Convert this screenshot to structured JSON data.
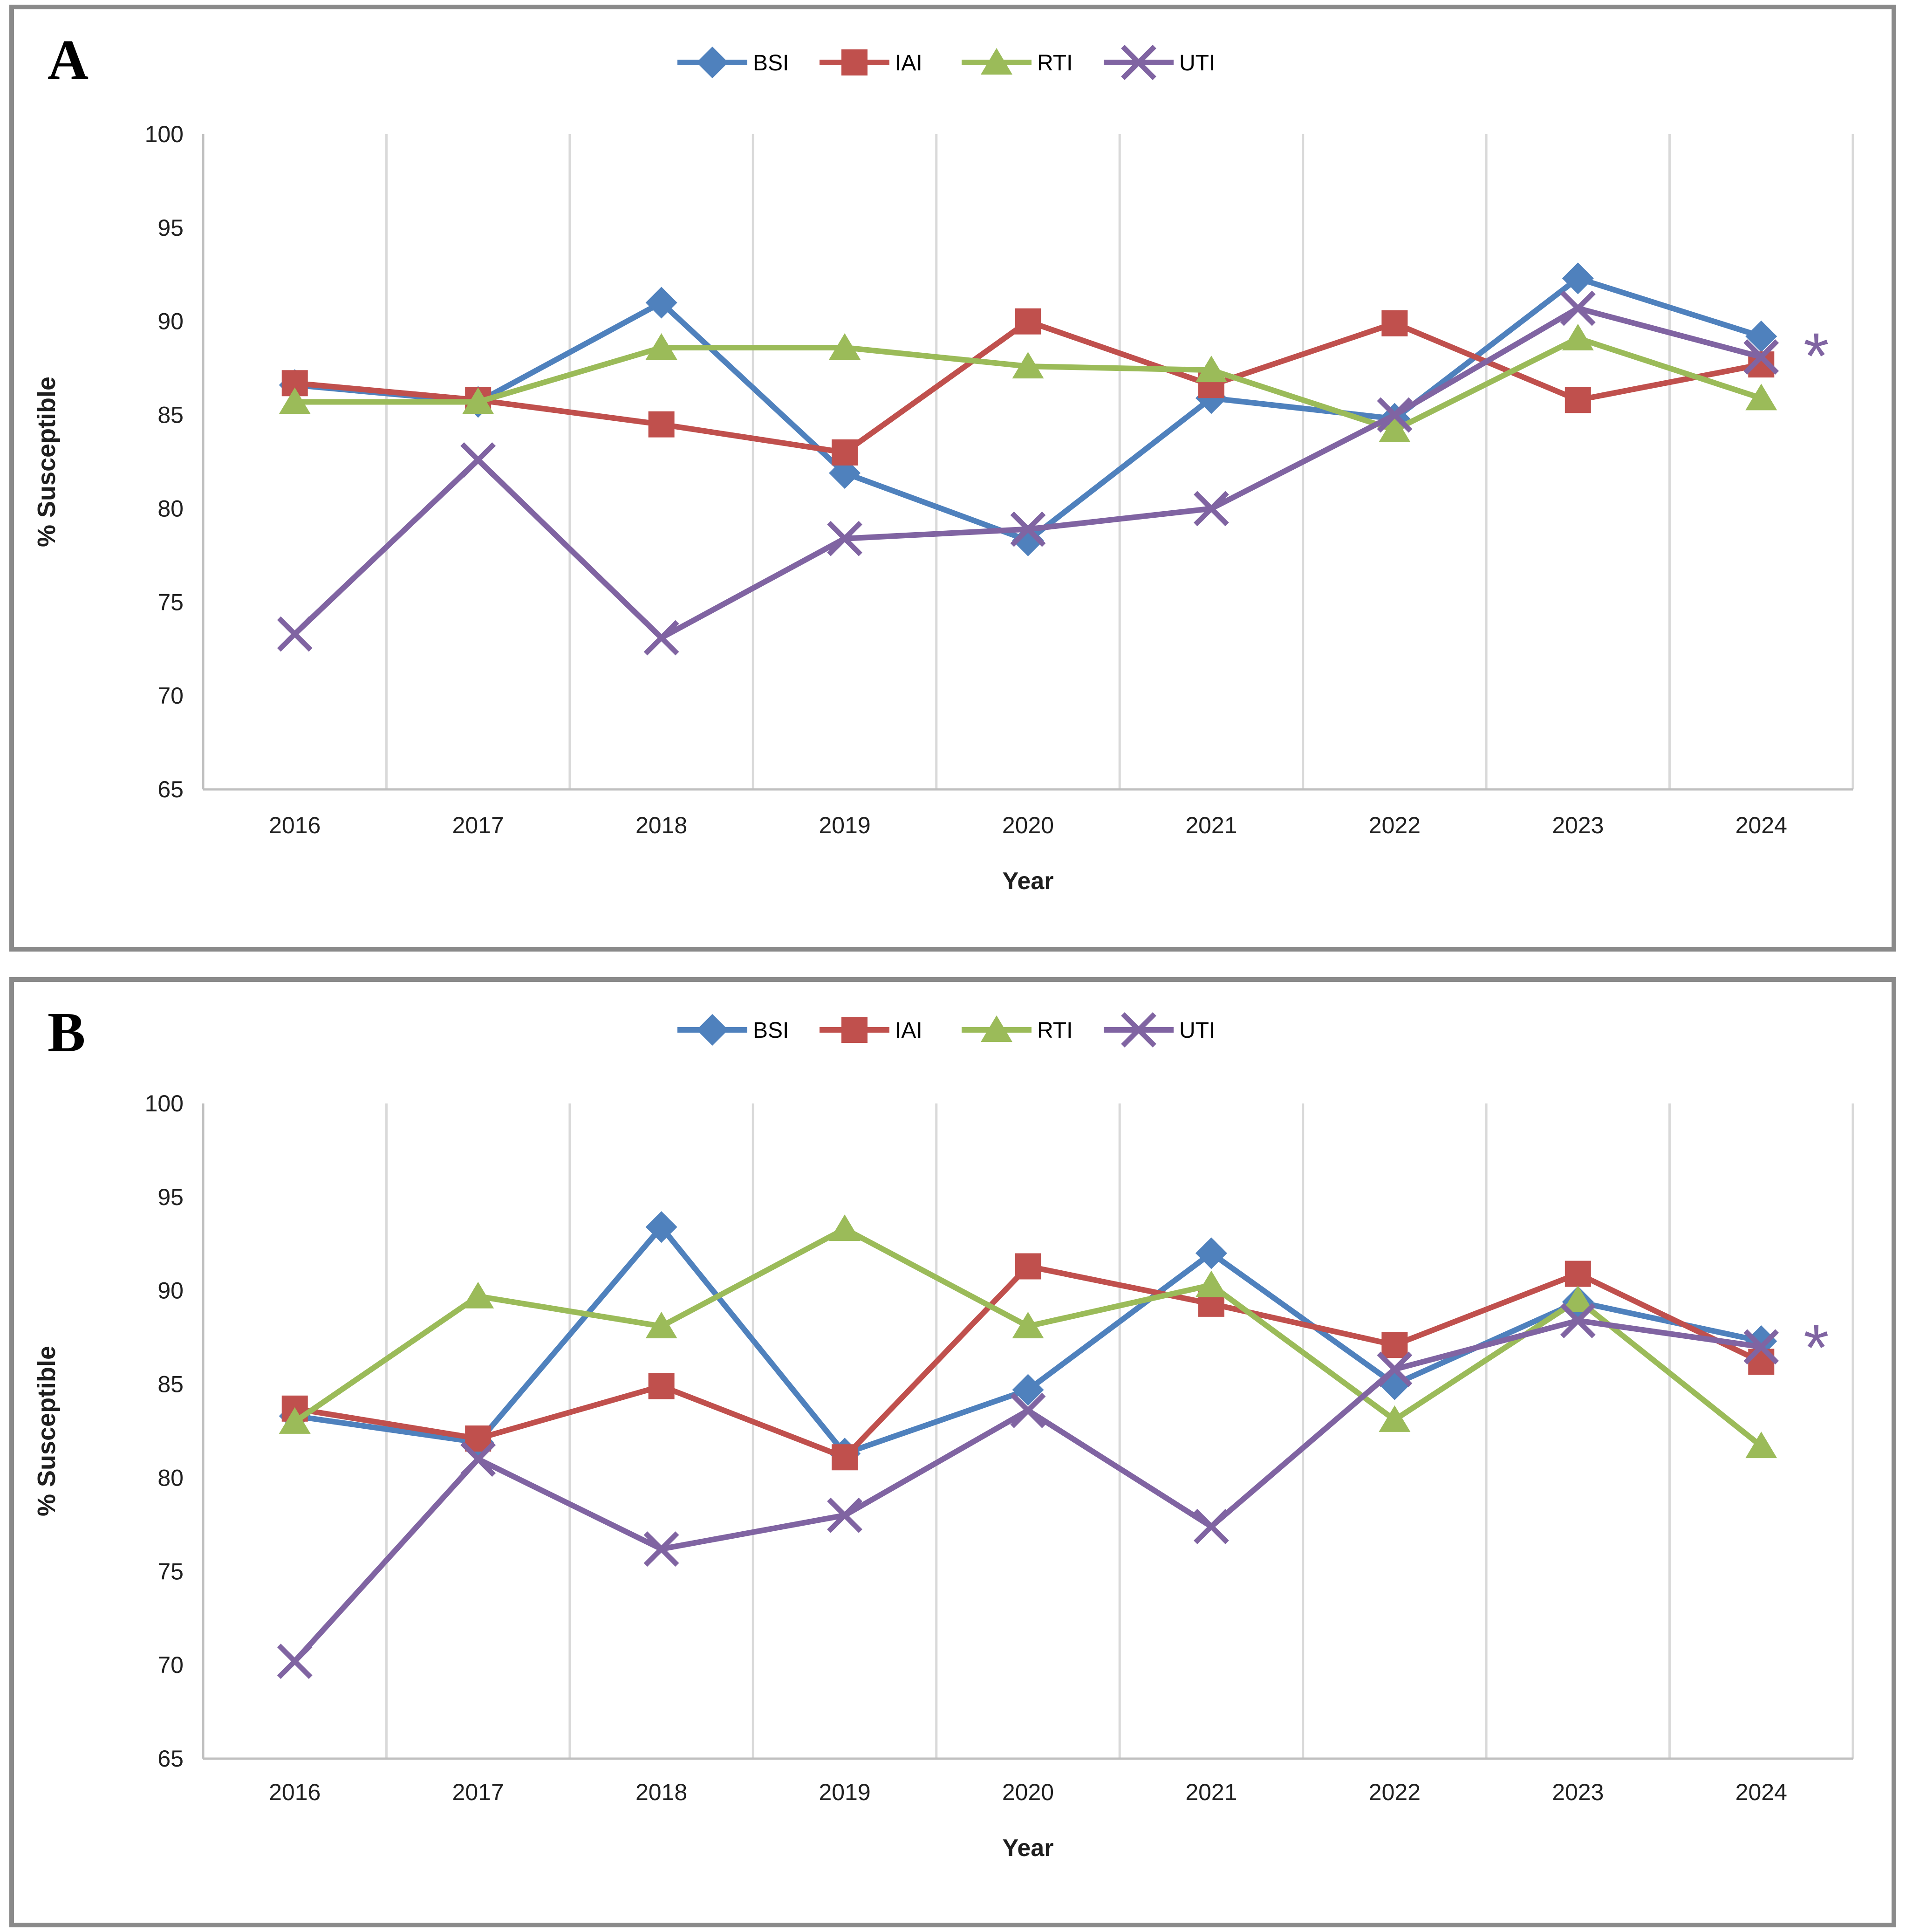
{
  "figure": {
    "panel_a_label": "A",
    "panel_b_label": "B",
    "background": "#ffffff",
    "panel_border_color": "#8a8a8a"
  },
  "chart_data": [
    {
      "panel": "A",
      "type": "line",
      "title": "",
      "xlabel": "Year",
      "ylabel": "% Susceptible",
      "categories": [
        2016,
        2017,
        2018,
        2019,
        2020,
        2021,
        2022,
        2023,
        2024
      ],
      "ylim": [
        65,
        100
      ],
      "ytick_step": 5,
      "yticks": [
        65,
        70,
        75,
        80,
        85,
        90,
        95,
        100
      ],
      "grid": "vertical-only",
      "legend_position": "top-center",
      "legend": [
        "BSI",
        "IAI",
        "RTI",
        "UTI"
      ],
      "series": [
        {
          "name": "BSI",
          "color": "#4F81BD",
          "marker": "diamond",
          "values": [
            86.6,
            85.7,
            91.0,
            81.9,
            78.3,
            85.9,
            84.8,
            92.3,
            89.2
          ]
        },
        {
          "name": "IAI",
          "color": "#C0504D",
          "marker": "square",
          "values": [
            86.7,
            85.8,
            84.5,
            83.0,
            90.0,
            86.6,
            89.9,
            85.8,
            87.7
          ]
        },
        {
          "name": "RTI",
          "color": "#9BBB59",
          "marker": "triangle",
          "values": [
            85.7,
            85.7,
            88.6,
            88.6,
            87.6,
            87.4,
            84.2,
            89.1,
            85.9
          ]
        },
        {
          "name": "UTI",
          "color": "#8064A2",
          "marker": "x",
          "values": [
            73.3,
            82.6,
            73.1,
            78.4,
            78.9,
            80.0,
            85.0,
            90.7,
            88.1
          ]
        }
      ],
      "annotation": {
        "text": "*",
        "color": "#8064A2",
        "x": 2024.3,
        "y": 88.2
      }
    },
    {
      "panel": "B",
      "type": "line",
      "title": "",
      "xlabel": "Year",
      "ylabel": "% Susceptible",
      "categories": [
        2016,
        2017,
        2018,
        2019,
        2020,
        2021,
        2022,
        2023,
        2024
      ],
      "ylim": [
        65,
        100
      ],
      "ytick_step": 5,
      "yticks": [
        65,
        70,
        75,
        80,
        85,
        90,
        95,
        100
      ],
      "grid": "vertical-only",
      "legend_position": "top-center",
      "legend": [
        "BSI",
        "IAI",
        "RTI",
        "UTI"
      ],
      "series": [
        {
          "name": "BSI",
          "color": "#4F81BD",
          "marker": "diamond",
          "values": [
            83.3,
            81.9,
            93.4,
            81.3,
            84.7,
            92.0,
            85.0,
            89.4,
            87.3
          ]
        },
        {
          "name": "IAI",
          "color": "#C0504D",
          "marker": "square",
          "values": [
            83.7,
            82.1,
            84.9,
            81.1,
            91.3,
            89.3,
            87.1,
            90.9,
            86.2
          ]
        },
        {
          "name": "RTI",
          "color": "#9BBB59",
          "marker": "triangle",
          "values": [
            83.0,
            89.7,
            88.1,
            93.3,
            88.1,
            90.3,
            83.1,
            89.5,
            81.7
          ]
        },
        {
          "name": "UTI",
          "color": "#8064A2",
          "marker": "x",
          "values": [
            70.2,
            81.0,
            76.2,
            78.0,
            83.6,
            77.4,
            85.8,
            88.4,
            87.0
          ]
        }
      ],
      "annotation": {
        "text": "*",
        "color": "#8064A2",
        "x": 2024.3,
        "y": 87.0
      }
    }
  ],
  "style": {
    "gridline_color": "#D9D9D9",
    "axis_line_color": "#C0C0C0",
    "tick_label_color": "#1f1f1f",
    "axis_title_color": "#1f1f1f"
  }
}
